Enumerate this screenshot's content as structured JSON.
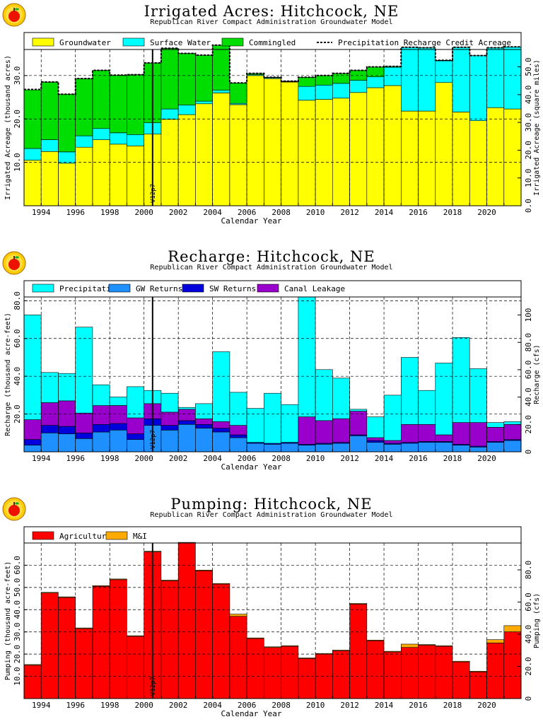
{
  "colors": {
    "groundwater": "#ffff00",
    "surface_water": "#00ffff",
    "commingled": "#00dd00",
    "precip": "#00ffff",
    "gw_returns": "#1e90ff",
    "sw_returns": "#0000dd",
    "canal": "#9900cc",
    "agricultural": "#ff0000",
    "mi": "#ffaa00",
    "logo": "apple-logo-icon"
  },
  "chart_data": [
    {
      "type": "bar",
      "title": "Irrigated Acres: Hitchcock, NE",
      "subtitle": "Republican River Compact Administration Groundwater Model",
      "xlabel": "Calendar Year",
      "ylabel": "Irrigated Acreage (thousand acres)",
      "ylabel_right": "Irrigated Acreage (square miles)",
      "xlim": [
        1993,
        2022
      ],
      "ylim": [
        0,
        36
      ],
      "ylim_right": [
        0,
        56.25
      ],
      "yticks": [
        "10.0",
        "20.0",
        "30.0"
      ],
      "yticks_right": [
        "0.0",
        "10.0",
        "20.0",
        "30.0",
        "40.0",
        "50.0"
      ],
      "xticks": [
        "1994",
        "1996",
        "1998",
        "2000",
        "2002",
        "2004",
        "2006",
        "2008",
        "2010",
        "2012",
        "2014",
        "2016",
        "2018",
        "2020"
      ],
      "marker": {
        "label": "V12p7",
        "x": 2000.5
      },
      "legend_position": "top",
      "grid": true,
      "stacked": true,
      "categories": [
        1993,
        1994,
        1995,
        1996,
        1997,
        1998,
        1999,
        2000,
        2001,
        2002,
        2003,
        2004,
        2005,
        2006,
        2007,
        2008,
        2009,
        2010,
        2011,
        2012,
        2013,
        2014,
        2015,
        2016,
        2017,
        2018,
        2019,
        2020,
        2021
      ],
      "series": [
        {
          "name": "Groundwater",
          "color_key": "groundwater",
          "values": [
            10.5,
            12.5,
            9.8,
            13.5,
            15.2,
            14.2,
            13.8,
            16.5,
            19.9,
            21.0,
            23.5,
            26.0,
            23.3,
            30.0,
            29.3,
            28.5,
            24.3,
            24.5,
            24.8,
            26.1,
            27.2,
            27.7,
            21.8,
            21.8,
            28.4,
            21.6,
            19.6,
            22.6,
            22.3
          ]
        },
        {
          "name": "Surface Water",
          "color_key": "surface_water",
          "values": [
            2.7,
            2.7,
            2.6,
            2.6,
            2.6,
            2.6,
            2.6,
            2.6,
            2.4,
            2.2,
            0.6,
            0.6,
            0.3,
            0.2,
            0.2,
            0.1,
            3.2,
            3.3,
            3.4,
            2.8,
            2.5,
            4.2,
            14.7,
            14.6,
            5.0,
            14.9,
            15.0,
            13.8,
            14.3
          ]
        },
        {
          "name": "Commingled",
          "color_key": "commingled",
          "values": [
            13.5,
            13.3,
            13.3,
            13.2,
            13.4,
            13.3,
            13.8,
            13.8,
            14.0,
            11.9,
            10.6,
            10.4,
            4.7,
            0.3,
            0.1,
            0.1,
            2.1,
            2.2,
            2.3,
            2.3,
            2.3,
            0.2,
            0.0,
            0.0,
            0.1,
            0.0,
            0.0,
            0.0,
            0.0
          ]
        }
      ],
      "line": {
        "name": "Precipitation Recharge Credit Acreage",
        "values": [
          26.8,
          28.5,
          25.7,
          29.3,
          31.2,
          30.1,
          30.2,
          32.9,
          36.3,
          35.1,
          34.7,
          37.0,
          28.3,
          30.5,
          29.6,
          28.7,
          29.6,
          30.0,
          30.5,
          31.2,
          32.0,
          32.1,
          36.5,
          36.4,
          33.5,
          36.5,
          34.6,
          36.4,
          36.6
        ]
      }
    },
    {
      "type": "bar",
      "title": "Recharge: Hitchcock, NE",
      "subtitle": "Republican River Compact Administration Groundwater Model",
      "xlabel": "Calendar Year",
      "ylabel": "Recharge (thousand acre-feet)",
      "ylabel_right": "Recharge (cfs)",
      "xlim": [
        1993,
        2022
      ],
      "ylim": [
        0,
        82
      ],
      "ylim_right": [
        0,
        113.2
      ],
      "yticks": [
        "20.0",
        "40.0",
        "60.0",
        "80.0"
      ],
      "yticks_right": [
        "0",
        "20.0",
        "40.0",
        "60.0",
        "80.0",
        "100"
      ],
      "xticks": [
        "1994",
        "1996",
        "1998",
        "2000",
        "2002",
        "2004",
        "2006",
        "2008",
        "2010",
        "2012",
        "2014",
        "2016",
        "2018",
        "2020"
      ],
      "marker": {
        "label": "V12p7",
        "x": 2000.5
      },
      "legend_position": "top",
      "grid": true,
      "stacked": true,
      "categories": [
        1993,
        1994,
        1995,
        1996,
        1997,
        1998,
        1999,
        2000,
        2001,
        2002,
        2003,
        2004,
        2005,
        2006,
        2007,
        2008,
        2009,
        2010,
        2011,
        2012,
        2013,
        2014,
        2015,
        2016,
        2017,
        2018,
        2019,
        2020,
        2021
      ],
      "series": [
        {
          "name": "GW Returns",
          "color_key": "gw_returns",
          "values": [
            3.5,
            10.0,
            9.5,
            7.0,
            10.5,
            11.5,
            6.5,
            14.0,
            11.5,
            14.5,
            12.5,
            10.5,
            7.5,
            4.5,
            4.0,
            4.5,
            3.5,
            4.0,
            4.5,
            8.5,
            5.0,
            4.0,
            4.5,
            5.0,
            5.0,
            3.5,
            2.5,
            5.0,
            6.0
          ]
        },
        {
          "name": "SW Returns",
          "color_key": "sw_returns",
          "values": [
            3.0,
            4.0,
            4.0,
            3.0,
            4.0,
            3.5,
            3.0,
            3.5,
            2.5,
            2.0,
            2.0,
            2.0,
            1.5,
            0.5,
            0.5,
            0.5,
            0.5,
            0.5,
            0.5,
            0.5,
            1.0,
            0.5,
            0.5,
            0.5,
            0.5,
            0.5,
            0.5,
            0.5,
            0.5
          ]
        },
        {
          "name": "Canal Leakage",
          "color_key": "canal",
          "values": [
            10.5,
            12.0,
            13.5,
            10.5,
            10.0,
            9.5,
            8.5,
            8.0,
            7.0,
            6.0,
            3.0,
            3.5,
            5.0,
            0.0,
            0.0,
            0.0,
            14.5,
            12.0,
            12.5,
            12.5,
            1.5,
            1.5,
            9.5,
            9.0,
            3.5,
            11.5,
            12.5,
            7.5,
            8.0
          ]
        },
        {
          "name": "Precipitation",
          "color_key": "precip",
          "values": [
            55.5,
            16.0,
            14.5,
            45.5,
            11.0,
            4.5,
            16.5,
            7.0,
            10.0,
            1.0,
            8.0,
            37.0,
            17.5,
            18.0,
            26.5,
            20.0,
            63.5,
            27.0,
            21.5,
            1.0,
            11.0,
            24.0,
            35.5,
            18.0,
            38.0,
            45.0,
            28.5,
            2.5,
            1.5
          ]
        }
      ]
    },
    {
      "type": "bar",
      "title": "Pumping: Hitchcock, NE",
      "subtitle": "Republican River Compact Administration Groundwater Model",
      "xlabel": "Calendar Year",
      "ylabel": "Pumping (thousand acre-feet)",
      "ylabel_right": "Pumping (cfs)",
      "xlim": [
        1993,
        2022
      ],
      "ylim": [
        0,
        70
      ],
      "ylim_right": [
        0,
        96.7
      ],
      "yticks": [
        "10.0",
        "20.0",
        "30.0",
        "40.0",
        "50.0",
        "60.0"
      ],
      "yticks_right": [
        "0",
        "20.0",
        "40.0",
        "60.0",
        "80.0"
      ],
      "xticks": [
        "1994",
        "1996",
        "1998",
        "2000",
        "2002",
        "2004",
        "2006",
        "2008",
        "2010",
        "2012",
        "2014",
        "2016",
        "2018",
        "2020"
      ],
      "marker": {
        "label": "V12p7",
        "x": 2000.5
      },
      "legend_position": "top",
      "grid": true,
      "stacked": true,
      "categories": [
        1993,
        1994,
        1995,
        1996,
        1997,
        1998,
        1999,
        2000,
        2001,
        2002,
        2003,
        2004,
        2005,
        2006,
        2007,
        2008,
        2009,
        2010,
        2011,
        2012,
        2013,
        2014,
        2015,
        2016,
        2017,
        2018,
        2019,
        2020,
        2021
      ],
      "series": [
        {
          "name": "Agricultural",
          "color_key": "agricultural",
          "values": [
            15.0,
            47.5,
            45.5,
            31.5,
            50.5,
            53.5,
            28.0,
            66.0,
            53.0,
            70.0,
            57.5,
            51.5,
            37.0,
            27.0,
            23.0,
            23.5,
            18.0,
            20.0,
            21.5,
            42.5,
            26.0,
            21.0,
            23.0,
            24.0,
            23.5,
            16.5,
            12.0,
            25.0,
            30.0
          ]
        },
        {
          "name": "M&I",
          "color_key": "mi",
          "values": [
            0.3,
            0.3,
            0.3,
            0.3,
            0.3,
            0.3,
            0.3,
            0.3,
            0.3,
            0.3,
            0.3,
            0.3,
            1.0,
            0.3,
            0.3,
            0.3,
            0.3,
            0.3,
            0.3,
            0.3,
            0.3,
            0.3,
            1.5,
            0.3,
            0.3,
            0.3,
            0.3,
            1.5,
            2.8
          ]
        }
      ]
    }
  ]
}
